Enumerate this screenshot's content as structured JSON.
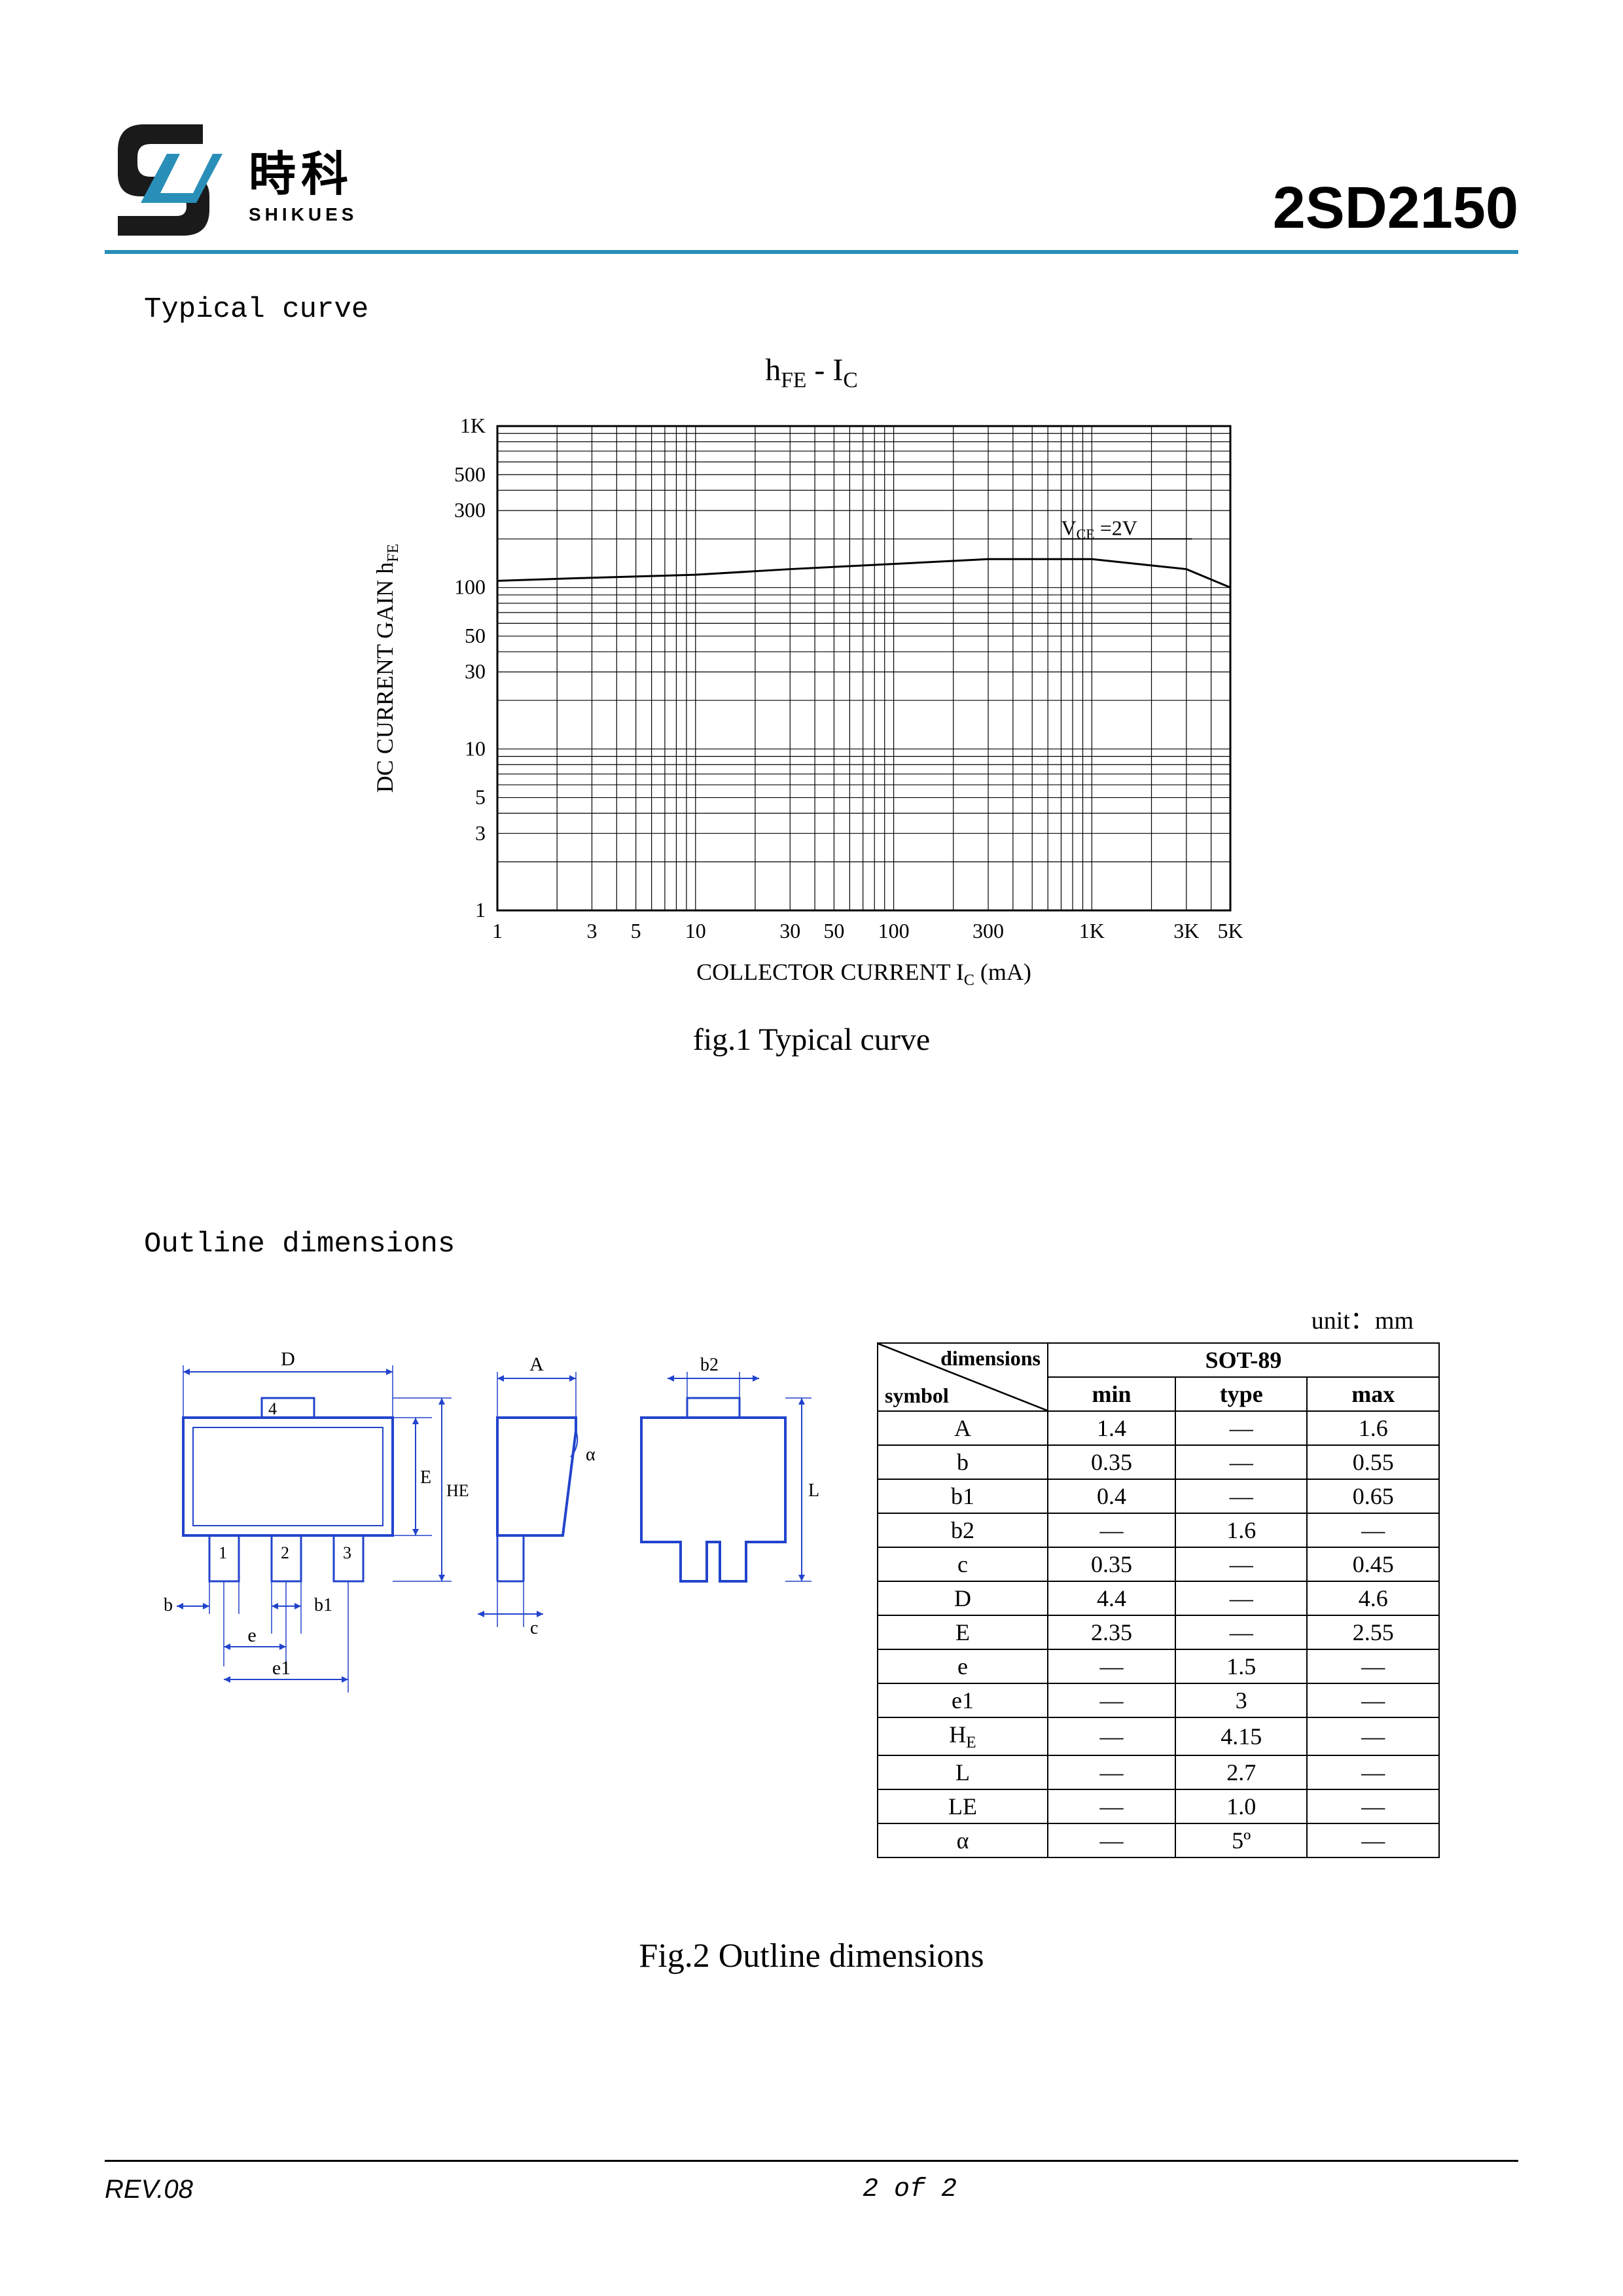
{
  "header": {
    "logo_cn": "時科",
    "logo_en": "SHIKUES",
    "part_number": "2SD2150",
    "accent_color": "#2a8fb8",
    "logo_black": "#1a1a1a"
  },
  "section1": {
    "label": "Typical curve",
    "chart": {
      "type": "line-loglog",
      "title_html": "h<sub>FE</sub> - I<sub>C</sub>",
      "ylabel_html": "DC CURRENT GAIN h<sub>FE</sub>",
      "xlabel_html": "COLLECTOR CURRENT I<sub>C</sub>   (mA)",
      "annotation_html": "V<sub>CE</sub> =2V",
      "x_ticks": [
        1,
        3,
        5,
        10,
        30,
        50,
        100,
        300,
        1000,
        3000,
        5000
      ],
      "x_tick_labels": [
        "1",
        "3",
        "5",
        "10",
        "30",
        "50",
        "100",
        "300",
        "1K",
        "3K",
        "5K"
      ],
      "y_ticks": [
        1,
        3,
        5,
        10,
        30,
        50,
        100,
        300,
        500,
        1000
      ],
      "y_tick_labels": [
        "1",
        "3",
        "5",
        "10",
        "30",
        "50",
        "100",
        "300",
        "500",
        "1K"
      ],
      "xlim": [
        1,
        5000
      ],
      "ylim": [
        1,
        1000
      ],
      "series": {
        "x": [
          1,
          3,
          10,
          30,
          100,
          300,
          1000,
          3000,
          5000
        ],
        "y": [
          110,
          115,
          120,
          130,
          140,
          150,
          150,
          130,
          100
        ]
      },
      "grid_color": "#000000",
      "line_color": "#000000",
      "line_width": 3,
      "title_fontsize": 48,
      "label_fontsize": 36,
      "tick_fontsize": 32
    },
    "caption": "fig.1 Typical curve"
  },
  "section2": {
    "label": "Outline dimensions",
    "unit_label": "unit：mm",
    "table": {
      "header_diag_top": "dimensions",
      "header_diag_bottom": "symbol",
      "package": "SOT-89",
      "subheaders": [
        "min",
        "type",
        "max"
      ],
      "rows": [
        {
          "sym": "A",
          "min": "1.4",
          "typ": "—",
          "max": "1.6"
        },
        {
          "sym": "b",
          "min": "0.35",
          "typ": "—",
          "max": "0.55"
        },
        {
          "sym": "b1",
          "min": "0.4",
          "typ": "—",
          "max": "0.65"
        },
        {
          "sym": "b2",
          "min": "—",
          "typ": "1.6",
          "max": "—"
        },
        {
          "sym": "c",
          "min": "0.35",
          "typ": "—",
          "max": "0.45"
        },
        {
          "sym": "D",
          "min": "4.4",
          "typ": "—",
          "max": "4.6"
        },
        {
          "sym": "E",
          "min": "2.35",
          "typ": "—",
          "max": "2.55"
        },
        {
          "sym": "e",
          "min": "—",
          "typ": "1.5",
          "max": "—"
        },
        {
          "sym": "e1",
          "min": "—",
          "typ": "3",
          "max": "—"
        },
        {
          "sym": "HE",
          "min": "—",
          "typ": "4.15",
          "max": "—",
          "sym_html": "H<sub>E</sub>"
        },
        {
          "sym": "L",
          "min": "—",
          "typ": "2.7",
          "max": "—"
        },
        {
          "sym": "LE",
          "min": "—",
          "typ": "1.0",
          "max": "—"
        },
        {
          "sym": "α",
          "min": "—",
          "typ": "5º",
          "max": "—"
        }
      ]
    },
    "drawing_labels": [
      "D",
      "A",
      "b2",
      "4",
      "E",
      "HE",
      "L",
      "1",
      "2",
      "3",
      "b",
      "b1",
      "c",
      "e",
      "e1",
      "α"
    ],
    "drawing_color": "#2244cc",
    "caption": "Fig.2   Outline dimensions"
  },
  "footer": {
    "revision": "REV.08",
    "page": "2 of 2"
  }
}
